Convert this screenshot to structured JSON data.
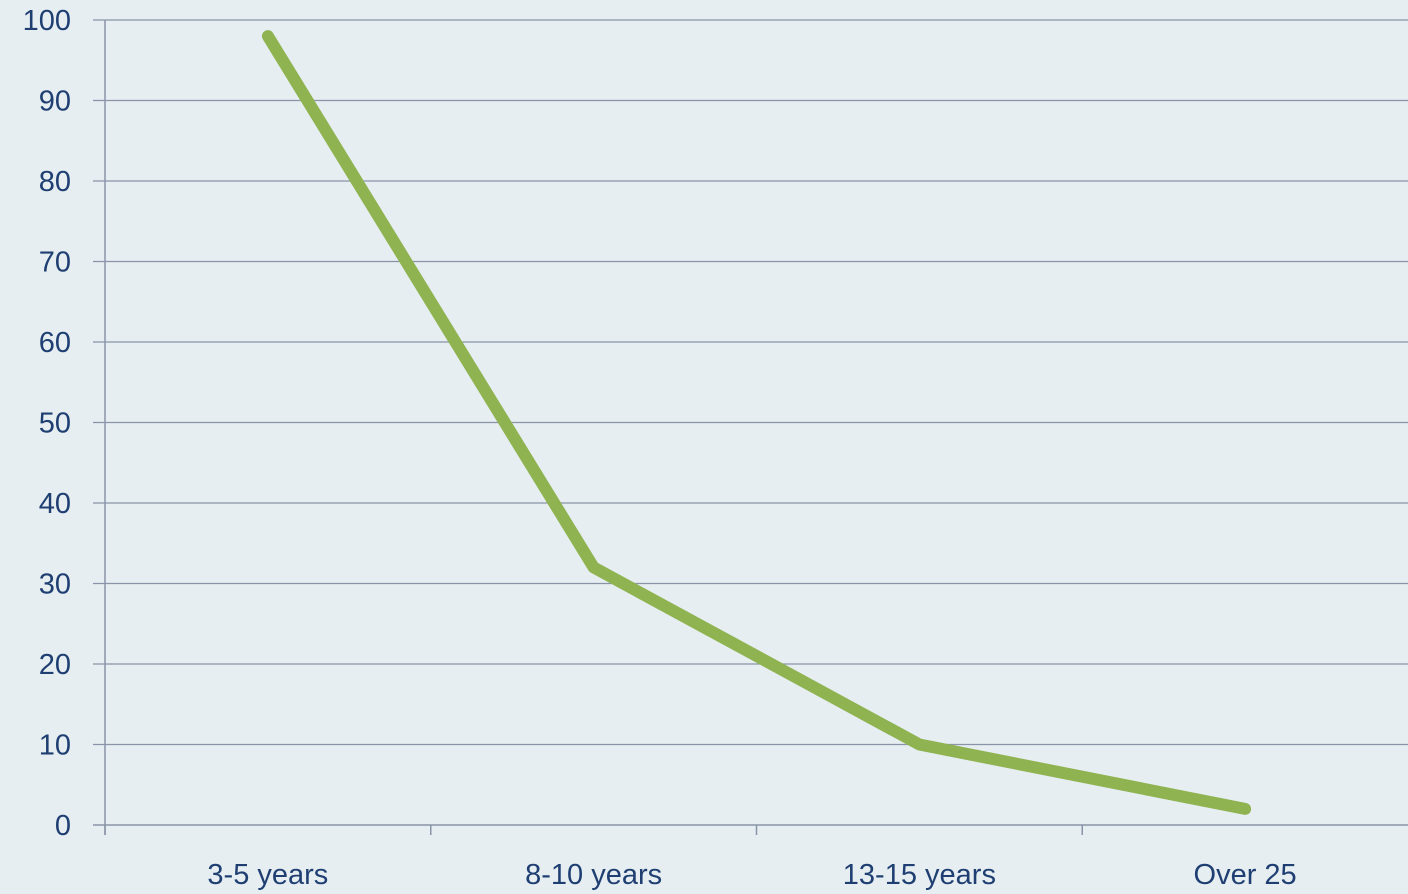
{
  "chart_data": {
    "type": "line",
    "categories": [
      "3-5 years",
      "8-10 years",
      "13-15 years",
      "Over 25"
    ],
    "series": [
      {
        "values": [
          98,
          32,
          10,
          2
        ],
        "color": "#8fb350"
      }
    ],
    "title": "",
    "xlabel": "",
    "ylabel": "",
    "ylim": [
      0,
      100
    ],
    "yticks": [
      0,
      10,
      20,
      30,
      40,
      50,
      60,
      70,
      80,
      90,
      100
    ],
    "grid": true,
    "legend": "none",
    "background_color": "#e6eef1",
    "grid_color": "#8a94a8",
    "label_color": "#1f3f72"
  }
}
